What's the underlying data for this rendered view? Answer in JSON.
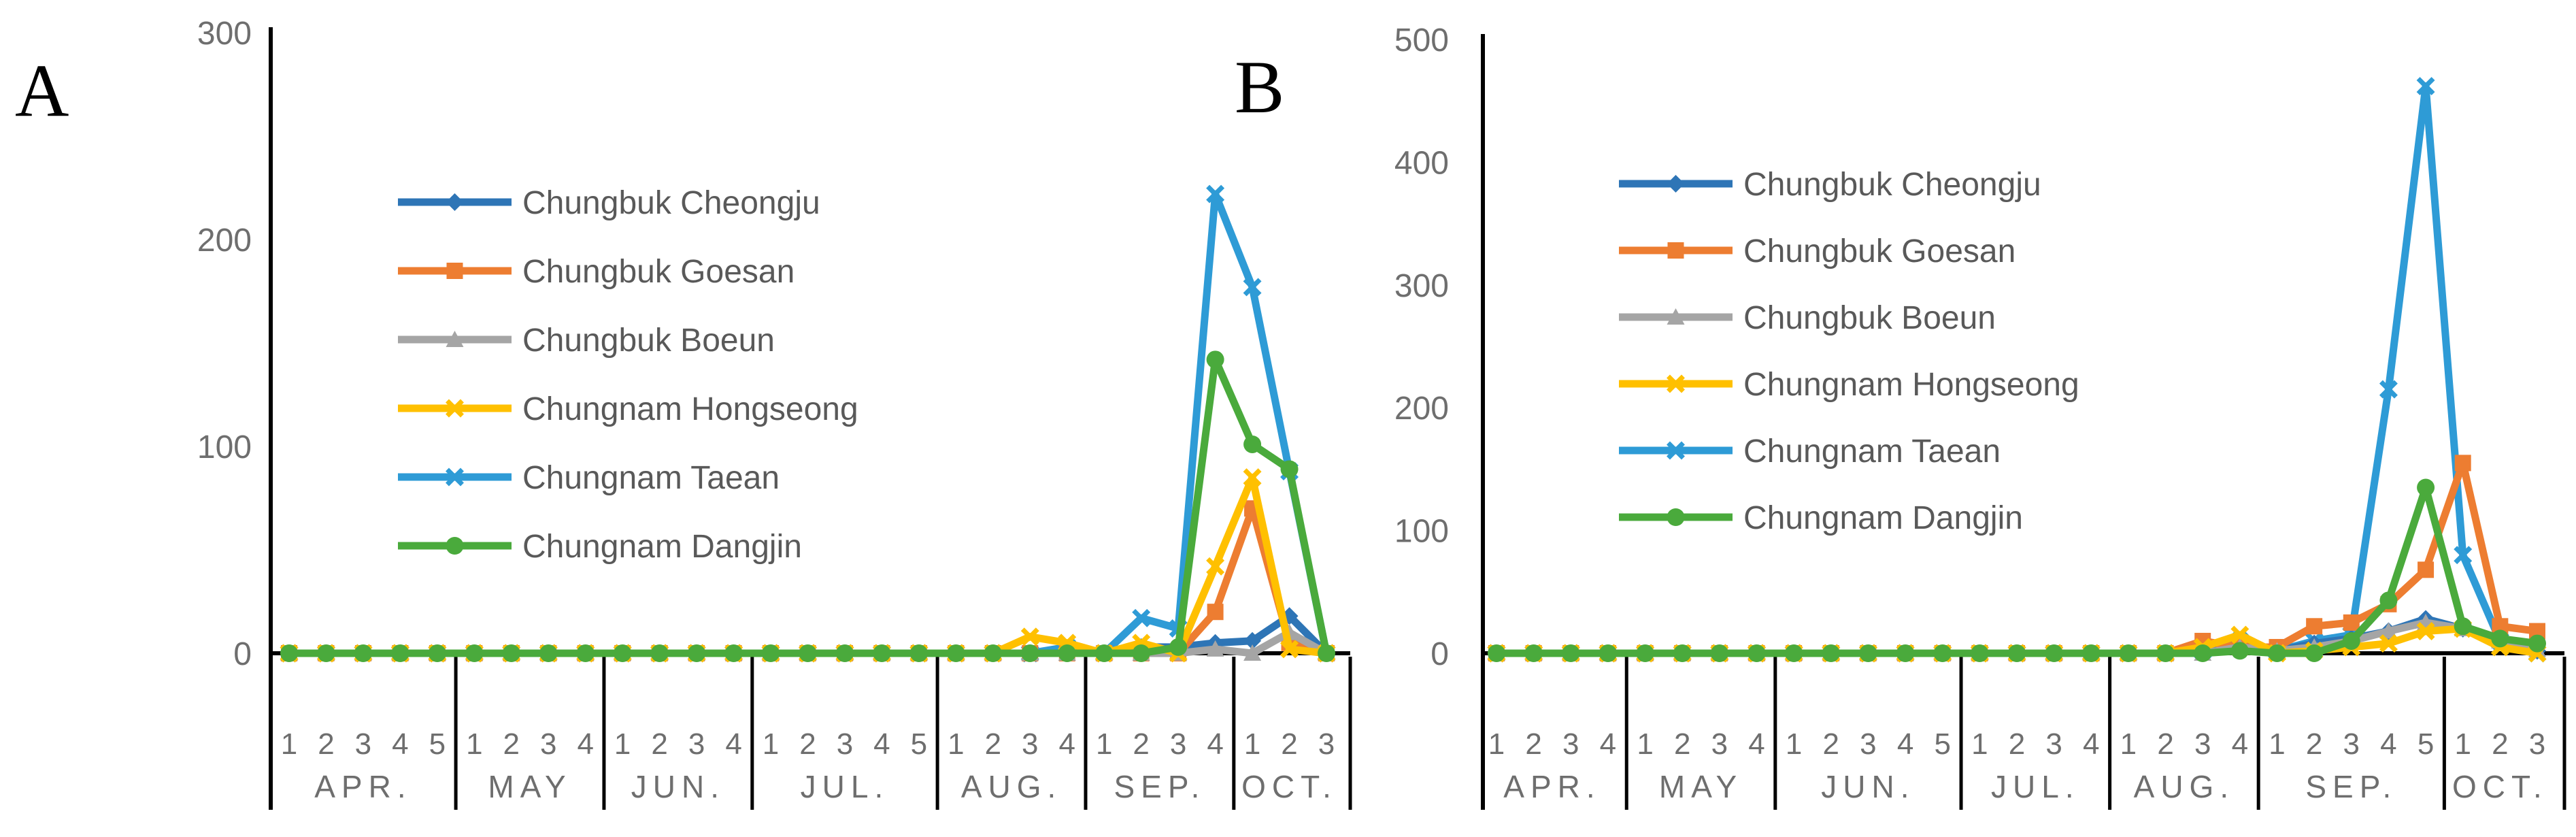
{
  "chart_data": [
    {
      "type": "line",
      "panel_label": "A",
      "ylim": [
        0,
        300
      ],
      "yticks": [
        "0",
        "100",
        "200",
        "300"
      ],
      "weeks": [
        "1",
        "2",
        "3",
        "4",
        "5",
        "1",
        "2",
        "3",
        "4",
        "1",
        "2",
        "3",
        "4",
        "1",
        "2",
        "3",
        "4",
        "5",
        "1",
        "2",
        "3",
        "4",
        "1",
        "2",
        "3",
        "4",
        "1",
        "2",
        "3"
      ],
      "months": [
        {
          "label": "APR.",
          "weeks": 5
        },
        {
          "label": "MAY",
          "weeks": 4
        },
        {
          "label": "JUN.",
          "weeks": 4
        },
        {
          "label": "JUL.",
          "weeks": 5
        },
        {
          "label": "AUG.",
          "weeks": 4
        },
        {
          "label": "SEP.",
          "weeks": 4
        },
        {
          "label": "OCT.",
          "weeks": 3
        }
      ],
      "series": [
        {
          "name": "Chungbuk Cheongju",
          "color": "#2e75b6",
          "marker": "diamond",
          "values": [
            0,
            0,
            0,
            0,
            0,
            0,
            0,
            0,
            0,
            0,
            0,
            0,
            0,
            0,
            0,
            0,
            0,
            0,
            0,
            0,
            0,
            0,
            0,
            3,
            3,
            5,
            6,
            18,
            0
          ]
        },
        {
          "name": "Chungbuk Goesan",
          "color": "#ed7d31",
          "marker": "square",
          "values": [
            0,
            0,
            0,
            0,
            0,
            0,
            0,
            0,
            0,
            0,
            0,
            0,
            0,
            0,
            0,
            0,
            0,
            0,
            0,
            0,
            0,
            0,
            0,
            0,
            0,
            20,
            70,
            5,
            0
          ]
        },
        {
          "name": "Chungbuk Boeun",
          "color": "#a5a5a5",
          "marker": "triangle",
          "values": [
            0,
            0,
            0,
            0,
            0,
            0,
            0,
            0,
            0,
            0,
            0,
            0,
            0,
            0,
            0,
            0,
            0,
            0,
            0,
            0,
            0,
            0,
            0,
            0,
            0,
            2,
            0,
            10,
            0
          ]
        },
        {
          "name": "Chungnam Hongseong",
          "color": "#ffc000",
          "marker": "x",
          "values": [
            0,
            0,
            0,
            0,
            0,
            0,
            0,
            0,
            0,
            0,
            0,
            0,
            0,
            0,
            0,
            0,
            0,
            0,
            0,
            0,
            8,
            5,
            0,
            5,
            0,
            42,
            85,
            2,
            0
          ]
        },
        {
          "name": "Chungnam Taean",
          "color": "#2e9bd6",
          "marker": "x",
          "values": [
            0,
            0,
            0,
            0,
            0,
            0,
            0,
            0,
            0,
            0,
            0,
            0,
            0,
            0,
            0,
            0,
            0,
            0,
            0,
            0,
            0,
            3,
            0,
            17,
            12,
            222,
            177,
            88,
            0
          ]
        },
        {
          "name": "Chungnam Dangjin",
          "color": "#4aaa3c",
          "marker": "circle",
          "values": [
            0,
            0,
            0,
            0,
            0,
            0,
            0,
            0,
            0,
            0,
            0,
            0,
            0,
            0,
            0,
            0,
            0,
            0,
            0,
            0,
            0,
            0,
            0,
            0,
            3,
            142,
            101,
            89,
            0
          ]
        }
      ]
    },
    {
      "type": "line",
      "panel_label": "B",
      "ylim": [
        0,
        500
      ],
      "yticks": [
        "0",
        "100",
        "200",
        "300",
        "400",
        "500"
      ],
      "weeks": [
        "1",
        "2",
        "3",
        "4",
        "1",
        "2",
        "3",
        "4",
        "1",
        "2",
        "3",
        "4",
        "5",
        "1",
        "2",
        "3",
        "4",
        "1",
        "2",
        "3",
        "4",
        "1",
        "2",
        "3",
        "4",
        "5",
        "1",
        "2",
        "3"
      ],
      "months": [
        {
          "label": "APR.",
          "weeks": 4
        },
        {
          "label": "MAY",
          "weeks": 4
        },
        {
          "label": "JUN.",
          "weeks": 5
        },
        {
          "label": "JUL.",
          "weeks": 4
        },
        {
          "label": "AUG.",
          "weeks": 4
        },
        {
          "label": "SEP.",
          "weeks": 5
        },
        {
          "label": "OCT.",
          "weeks": 3
        }
      ],
      "series": [
        {
          "name": "Chungbuk Cheongju",
          "color": "#2e75b6",
          "marker": "diamond",
          "values": [
            0,
            0,
            0,
            0,
            0,
            0,
            0,
            0,
            0,
            0,
            0,
            0,
            0,
            0,
            0,
            0,
            0,
            0,
            0,
            0,
            10,
            2,
            8,
            12,
            18,
            28,
            20,
            10,
            2
          ]
        },
        {
          "name": "Chungbuk Goesan",
          "color": "#ed7d31",
          "marker": "square",
          "values": [
            0,
            0,
            0,
            0,
            0,
            0,
            0,
            0,
            0,
            0,
            0,
            0,
            0,
            0,
            0,
            0,
            0,
            0,
            0,
            10,
            5,
            5,
            22,
            25,
            40,
            68,
            155,
            22,
            18
          ]
        },
        {
          "name": "Chungbuk Boeun",
          "color": "#a5a5a5",
          "marker": "triangle",
          "values": [
            0,
            0,
            0,
            0,
            0,
            0,
            0,
            0,
            0,
            0,
            0,
            0,
            0,
            0,
            0,
            0,
            0,
            0,
            0,
            0,
            5,
            2,
            5,
            10,
            18,
            25,
            20,
            10,
            3
          ]
        },
        {
          "name": "Chungnam Hongseong",
          "color": "#ffc000",
          "marker": "x",
          "values": [
            0,
            0,
            0,
            0,
            0,
            0,
            0,
            0,
            0,
            0,
            0,
            0,
            0,
            0,
            0,
            0,
            0,
            0,
            0,
            5,
            15,
            0,
            2,
            5,
            8,
            18,
            20,
            5,
            0
          ]
        },
        {
          "name": "Chungnam Taean",
          "color": "#2e9bd6",
          "marker": "x",
          "values": [
            0,
            0,
            0,
            0,
            0,
            0,
            0,
            0,
            0,
            0,
            0,
            0,
            0,
            0,
            0,
            0,
            0,
            0,
            0,
            2,
            10,
            2,
            10,
            15,
            215,
            462,
            80,
            10,
            0
          ]
        },
        {
          "name": "Chungnam Dangjin",
          "color": "#4aaa3c",
          "marker": "circle",
          "values": [
            0,
            0,
            0,
            0,
            0,
            0,
            0,
            0,
            0,
            0,
            0,
            0,
            0,
            0,
            0,
            0,
            0,
            0,
            0,
            0,
            2,
            0,
            0,
            10,
            43,
            135,
            22,
            12,
            8
          ]
        }
      ]
    }
  ]
}
